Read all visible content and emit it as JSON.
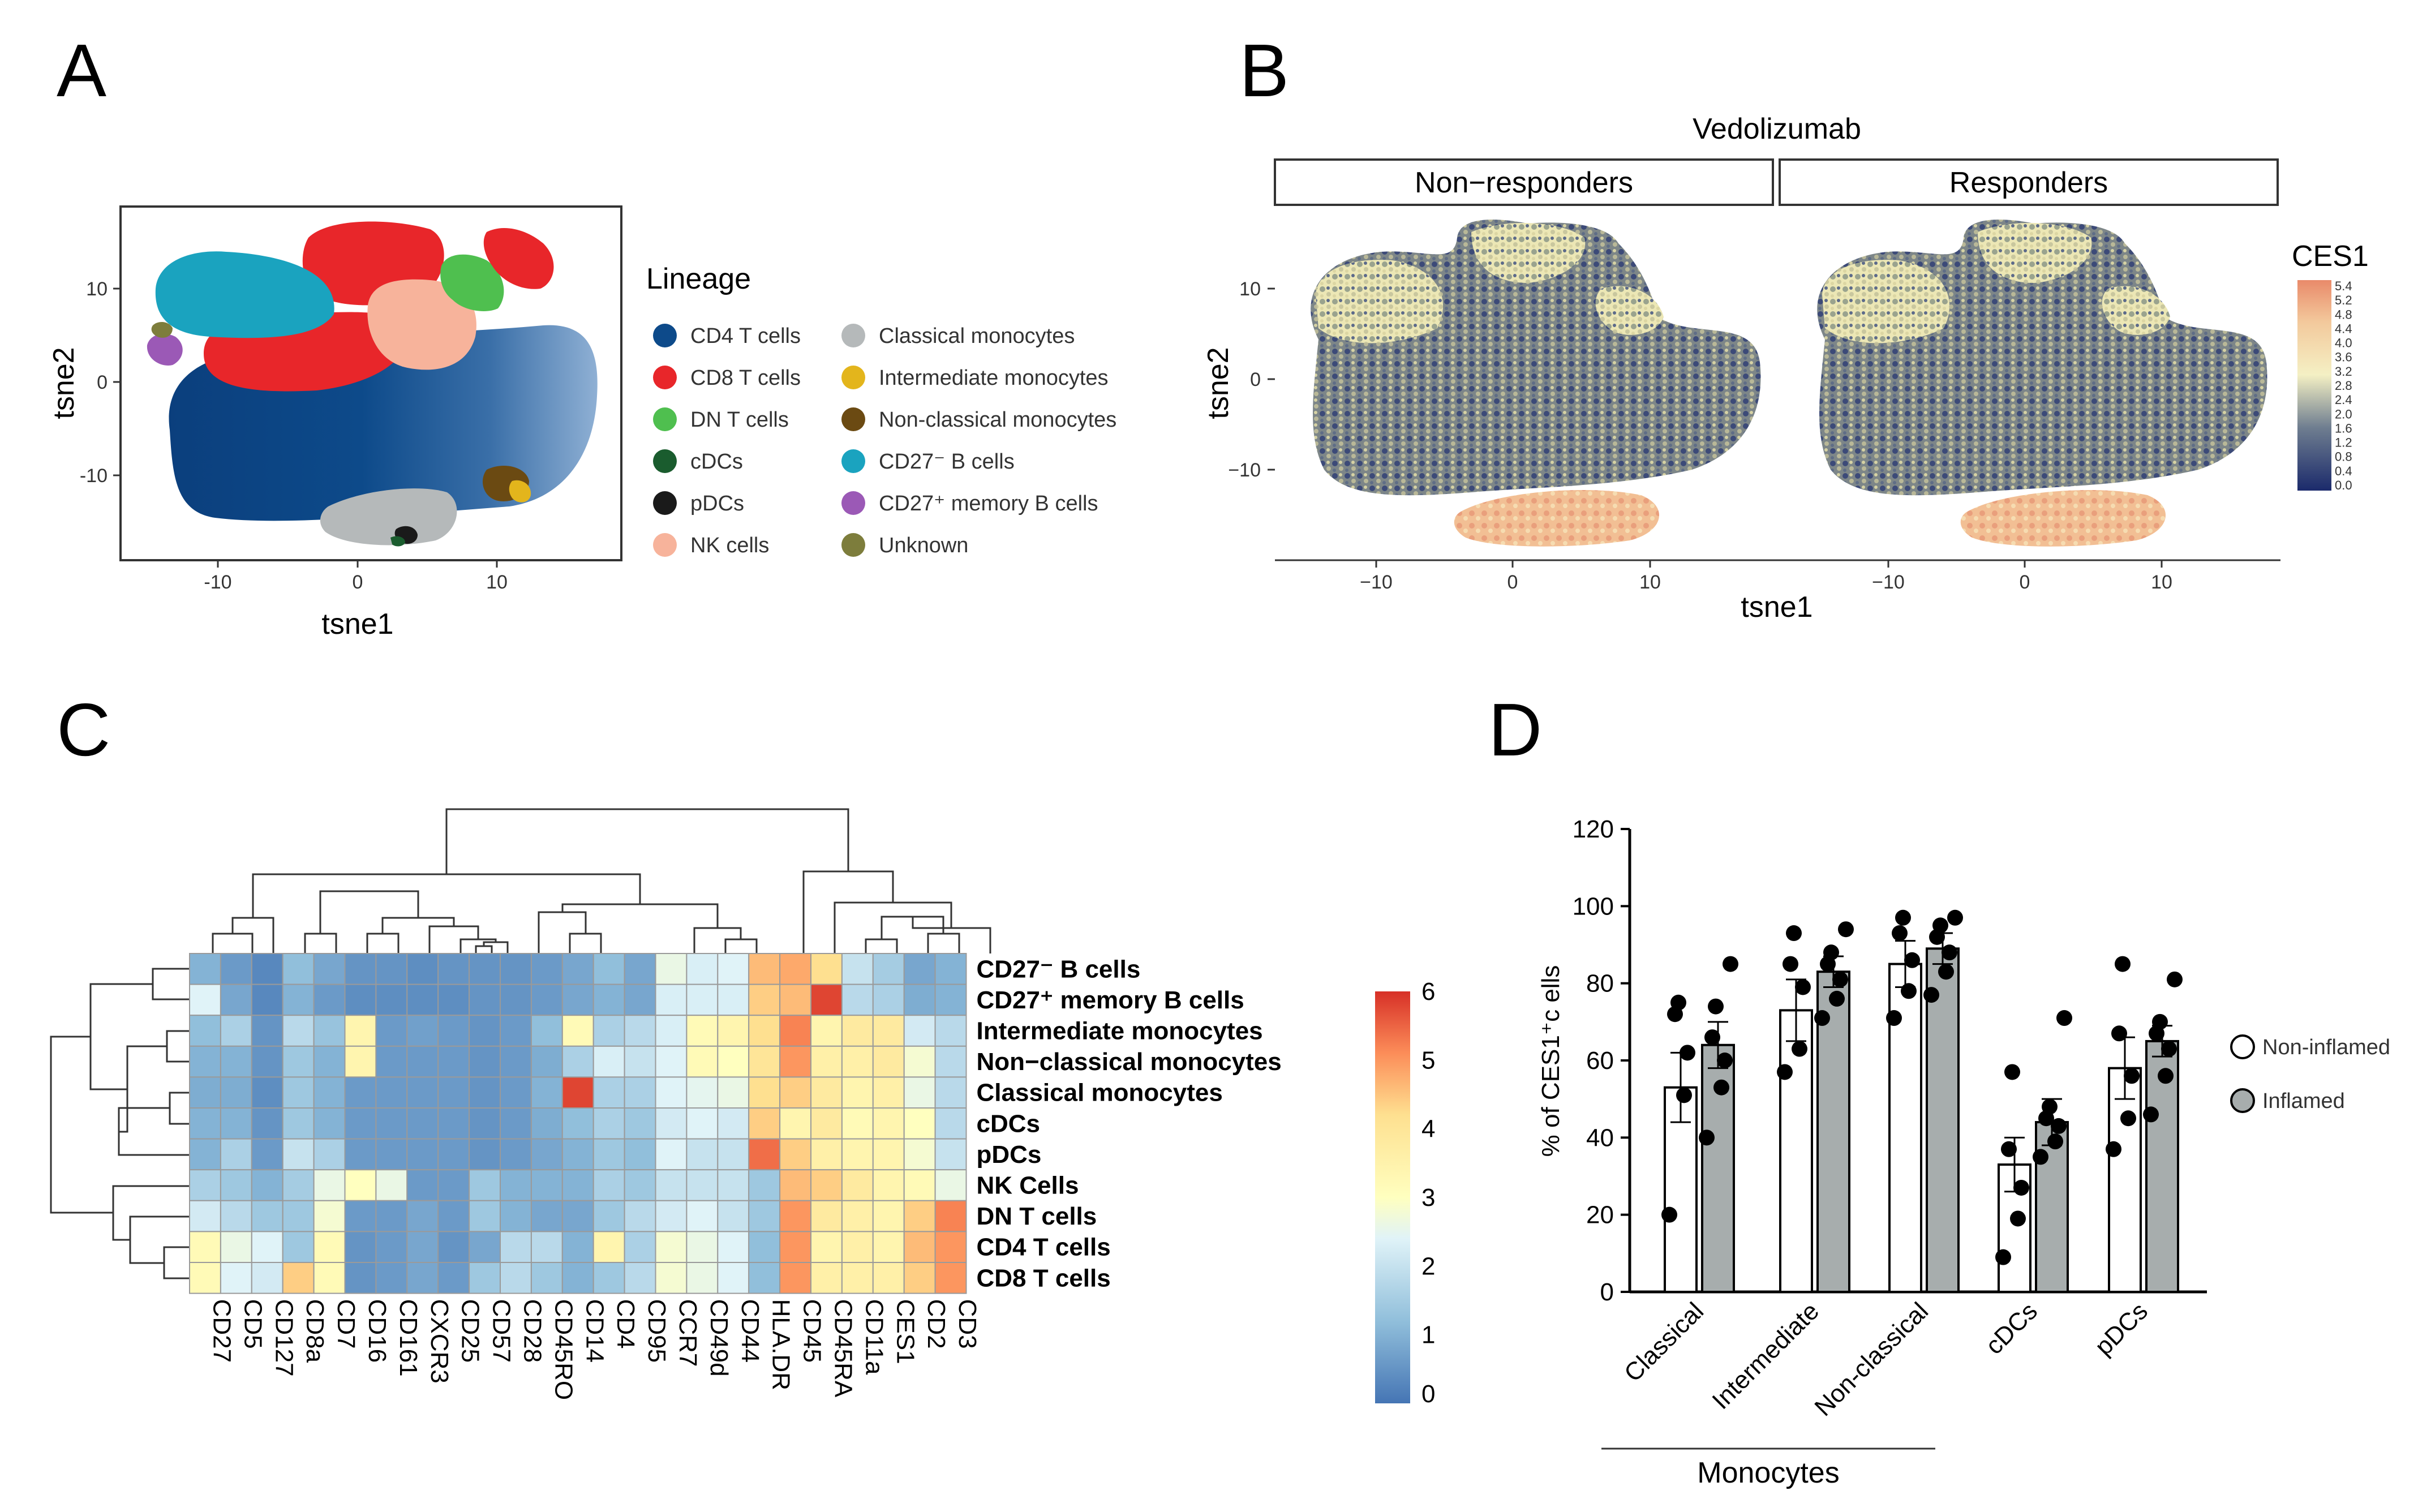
{
  "panels": {
    "a": "A",
    "b": "B",
    "c": "C",
    "d": "D"
  },
  "panelA": {
    "xlabel": "tsne1",
    "ylabel": "tsne2",
    "xticks": [
      "-10",
      "0",
      "10"
    ],
    "yticks": [
      "10",
      "0",
      "-10"
    ],
    "legend_title": "Lineage",
    "legend": [
      {
        "label": "CD4 T cells",
        "color": "#0d4a8a"
      },
      {
        "label": "CD8 T cells",
        "color": "#e8262a"
      },
      {
        "label": "DN T cells",
        "color": "#4fbf4f"
      },
      {
        "label": "cDCs",
        "color": "#1a5c2e"
      },
      {
        "label": "pDCs",
        "color": "#1a1a1a"
      },
      {
        "label": "NK cells",
        "color": "#f7b39b"
      },
      {
        "label": "Classical monocytes",
        "color": "#b5b9ba"
      },
      {
        "label": "Intermediate monocytes",
        "color": "#e3b51c"
      },
      {
        "label": "Non-classical monocytes",
        "color": "#6b4a12"
      },
      {
        "label": "CD27⁻ B cells",
        "color": "#1aa3bf"
      },
      {
        "label": "CD27⁺ memory B cells",
        "color": "#9b59b6"
      },
      {
        "label": "Unknown",
        "color": "#7d7d3c"
      }
    ]
  },
  "panelB": {
    "title": "Vedolizumab",
    "facets": [
      "Non−responders",
      "Responders"
    ],
    "xlabel": "tsne1",
    "ylabel": "tsne2",
    "xticks": [
      "−10",
      "0",
      "10"
    ],
    "yticks": [
      "10",
      "0",
      "−10"
    ],
    "color_title": "CES1",
    "color_ticks": [
      "5.4",
      "5.2",
      "4.8",
      "4.4",
      "4.0",
      "3.6",
      "3.2",
      "2.8",
      "2.4",
      "2.0",
      "1.6",
      "1.2",
      "0.8",
      "0.4",
      "0.0"
    ]
  },
  "chart_data": [
    {
      "type": "heatmap",
      "panel": "C",
      "columns": [
        "CD27",
        "CD5",
        "CD127",
        "CD8a",
        "CD7",
        "CD16",
        "CD161",
        "CXCR3",
        "CD25",
        "CD57",
        "CD28",
        "CD45RO",
        "CD14",
        "CD4",
        "CD95",
        "CCR7",
        "CD49d",
        "CD44",
        "HLA.DR",
        "CD45",
        "CD45RA",
        "CD11a",
        "CES1",
        "CD2",
        "CD3"
      ],
      "rows": [
        "CD27⁻ B cells",
        "CD27⁺ memory B cells",
        "Intermediate monocytes",
        "Non−classical monocytes",
        "Classical monocytes",
        "cDCs",
        "pDCs",
        "NK Cells",
        "DN T cells",
        "CD4 T cells",
        "CD8 T cells"
      ],
      "values": [
        [
          1.0,
          0.6,
          0.3,
          1.2,
          0.8,
          0.5,
          0.5,
          0.4,
          0.5,
          0.5,
          0.5,
          0.6,
          0.8,
          1.2,
          0.8,
          2.6,
          2.3,
          2.4,
          4.6,
          4.8,
          4.2,
          2.0,
          1.5,
          0.8,
          1.0
        ],
        [
          2.4,
          0.8,
          0.3,
          1.0,
          0.6,
          0.4,
          0.4,
          0.4,
          0.4,
          0.5,
          0.5,
          0.6,
          0.8,
          1.0,
          0.8,
          2.3,
          2.3,
          2.3,
          4.4,
          4.6,
          5.8,
          1.8,
          1.6,
          0.9,
          1.0
        ],
        [
          1.2,
          1.6,
          0.5,
          1.8,
          1.3,
          3.4,
          0.6,
          0.7,
          0.6,
          0.5,
          0.6,
          1.2,
          3.2,
          1.6,
          1.8,
          2.3,
          3.2,
          3.4,
          4.2,
          5.2,
          3.4,
          3.8,
          3.8,
          2.2,
          1.8
        ],
        [
          1.0,
          1.0,
          0.5,
          1.4,
          1.0,
          3.4,
          0.6,
          0.6,
          0.6,
          0.5,
          0.6,
          0.9,
          1.6,
          2.3,
          2.0,
          2.4,
          3.2,
          3.0,
          4.0,
          5.0,
          3.6,
          3.6,
          3.8,
          2.8,
          1.8
        ],
        [
          0.9,
          0.9,
          0.4,
          1.4,
          1.0,
          0.6,
          0.6,
          0.6,
          0.6,
          0.5,
          0.6,
          1.0,
          5.8,
          1.6,
          1.6,
          2.4,
          2.5,
          2.6,
          4.2,
          4.4,
          3.8,
          3.4,
          3.6,
          2.6,
          1.8
        ],
        [
          1.0,
          1.0,
          0.5,
          1.4,
          1.0,
          0.6,
          0.6,
          0.6,
          0.6,
          0.5,
          0.6,
          0.9,
          1.2,
          1.6,
          1.4,
          2.2,
          2.4,
          2.2,
          4.4,
          3.4,
          3.8,
          3.2,
          3.4,
          3.0,
          1.8
        ],
        [
          1.0,
          1.6,
          0.6,
          2.0,
          1.6,
          0.6,
          0.6,
          0.6,
          0.6,
          0.5,
          0.6,
          0.8,
          1.0,
          1.4,
          1.2,
          2.4,
          2.0,
          2.0,
          5.4,
          4.4,
          3.6,
          3.4,
          3.4,
          2.8,
          2.0
        ],
        [
          1.6,
          1.4,
          1.0,
          1.5,
          2.6,
          3.0,
          2.6,
          0.6,
          0.6,
          1.4,
          1.0,
          1.0,
          1.0,
          1.6,
          1.4,
          2.0,
          2.0,
          2.0,
          1.4,
          4.6,
          4.4,
          3.8,
          3.4,
          3.2,
          2.6
        ],
        [
          2.2,
          1.8,
          1.4,
          1.4,
          2.8,
          0.6,
          0.6,
          0.8,
          0.6,
          1.4,
          1.0,
          0.8,
          0.8,
          1.4,
          1.8,
          2.2,
          2.4,
          2.0,
          1.4,
          5.0,
          3.8,
          3.6,
          3.4,
          4.4,
          5.2
        ],
        [
          3.2,
          2.6,
          2.4,
          1.4,
          3.2,
          0.5,
          0.6,
          0.8,
          0.5,
          0.8,
          1.8,
          1.8,
          1.0,
          3.4,
          1.6,
          2.8,
          2.6,
          2.4,
          1.2,
          5.0,
          3.4,
          3.6,
          3.4,
          4.6,
          5.0
        ],
        [
          3.2,
          2.4,
          2.2,
          4.4,
          3.2,
          0.5,
          0.6,
          0.8,
          0.6,
          1.4,
          1.8,
          1.4,
          1.0,
          1.4,
          1.8,
          2.8,
          2.6,
          2.4,
          1.2,
          5.0,
          3.6,
          3.6,
          3.6,
          4.4,
          5.0
        ]
      ],
      "scale_ticks": [
        "0",
        "1",
        "2",
        "3",
        "4",
        "5",
        "6"
      ],
      "vmin": 0,
      "vmax": 6
    },
    {
      "type": "bar",
      "panel": "D",
      "ylabel": "% of CES1⁺c ells",
      "yticks": [
        "0",
        "20",
        "40",
        "60",
        "80",
        "100",
        "120"
      ],
      "ylim": [
        0,
        120
      ],
      "categories": [
        "Classical",
        "Intermediate",
        "Non-classical",
        "cDCs",
        "pDCs"
      ],
      "group_label": "Monocytes",
      "series": [
        {
          "name": "Non-inflamed",
          "color": "#ffffff",
          "values": [
            53,
            73,
            85,
            33,
            58
          ],
          "errors": [
            9,
            8,
            6,
            7,
            8
          ],
          "points": [
            [
              20,
              51,
              62,
              72,
              75
            ],
            [
              57,
              63,
              79,
              85,
              93
            ],
            [
              71,
              78,
              86,
              93,
              97
            ],
            [
              9,
              19,
              27,
              37,
              57
            ],
            [
              37,
              45,
              56,
              67,
              85
            ]
          ]
        },
        {
          "name": "Inflamed",
          "color": "#a7adad",
          "values": [
            64,
            83,
            89,
            44,
            65
          ],
          "errors": [
            6,
            4,
            4,
            6,
            4
          ],
          "points": [
            [
              40,
              53,
              60,
              66,
              74,
              85
            ],
            [
              71,
              76,
              81,
              85,
              88,
              94
            ],
            [
              77,
              83,
              88,
              92,
              95,
              97
            ],
            [
              35,
              39,
              43,
              45,
              48,
              71
            ],
            [
              46,
              56,
              63,
              67,
              70,
              81
            ]
          ]
        }
      ]
    }
  ]
}
